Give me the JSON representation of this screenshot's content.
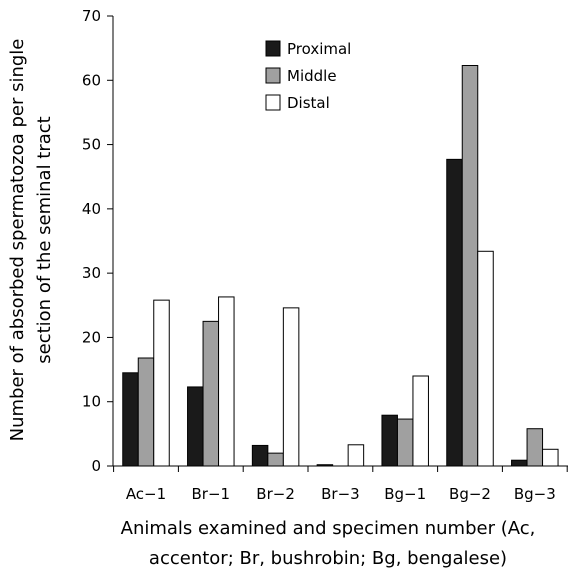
{
  "chart_data": {
    "type": "bar",
    "categories": [
      "Ac−1",
      "Br−1",
      "Br−2",
      "Br−3",
      "Bg−1",
      "Bg−2",
      "Bg−3"
    ],
    "series": [
      {
        "name": "Proximal",
        "color": "#1a1a1a",
        "values": [
          14.5,
          12.3,
          3.2,
          0.2,
          7.9,
          47.7,
          0.9
        ]
      },
      {
        "name": "Middle",
        "color": "#a0a0a0",
        "values": [
          16.8,
          22.5,
          2.0,
          0,
          7.3,
          62.3,
          5.8
        ]
      },
      {
        "name": "Distal",
        "color": "#ffffff",
        "values": [
          25.8,
          26.3,
          24.6,
          3.3,
          14.0,
          33.4,
          2.6
        ]
      }
    ],
    "xlabel_line1": "Animals examined and specimen number (Ac,",
    "xlabel_line2": "accentor; Br, bushrobin; Bg, bengalese)",
    "ylabel_line1": "Number of absorbed spermatozoa per single",
    "ylabel_line2": "section of the seminal tract",
    "ylim": [
      0,
      70
    ],
    "yticks": [
      "0",
      "10",
      "20",
      "30",
      "40",
      "50",
      "60",
      "70"
    ],
    "legend_position": "top-center",
    "grid": false
  }
}
